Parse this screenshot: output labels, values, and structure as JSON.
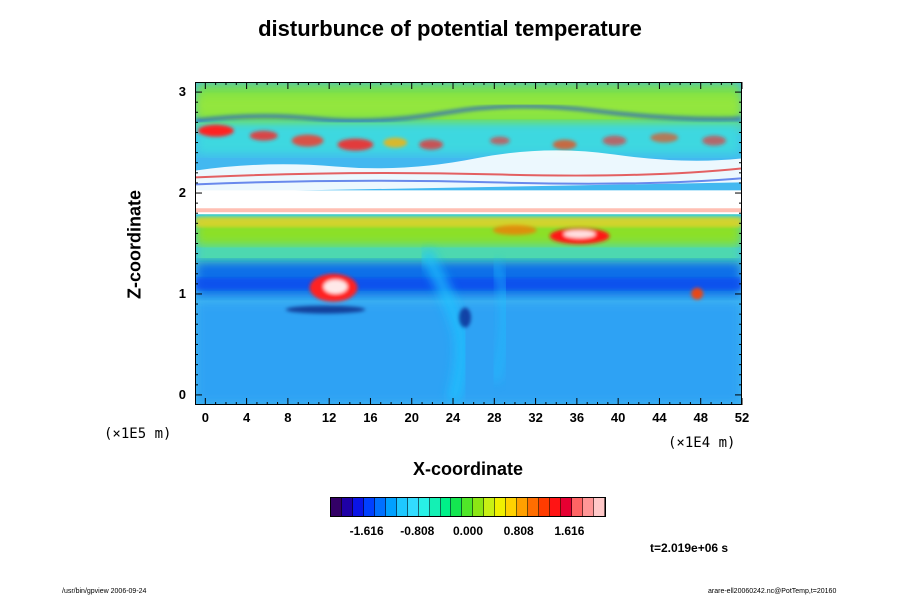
{
  "chart_data": {
    "type": "heatmap",
    "title": "disturbunce of potential temperature",
    "xlabel": "X-coordinate",
    "ylabel": "Z-coordinate",
    "x_unit": "(×1E4 m)",
    "z_unit": "(×1E5 m)",
    "xlim": [
      -1,
      52
    ],
    "ylim": [
      -0.1,
      3.1
    ],
    "x_ticks": [
      "0",
      "4",
      "8",
      "12",
      "16",
      "20",
      "24",
      "28",
      "32",
      "36",
      "40",
      "44",
      "48",
      "52"
    ],
    "y_ticks": [
      "0",
      "1",
      "2",
      "3"
    ],
    "colorbar": {
      "range": [
        -2.2,
        2.2
      ],
      "tick_labels": [
        "-1.616",
        "-0.808",
        "0.000",
        "0.808",
        "1.616"
      ],
      "colors": [
        "#330066",
        "#1f00a6",
        "#0a14e6",
        "#0040ff",
        "#0070ff",
        "#00a0ff",
        "#1ec8ff",
        "#32dcff",
        "#28f0e6",
        "#14f0b4",
        "#00f088",
        "#14e650",
        "#50e628",
        "#8ce614",
        "#c8f014",
        "#f0f000",
        "#ffd200",
        "#ffa000",
        "#ff6e00",
        "#ff3c00",
        "#ff1414",
        "#e60032",
        "#ff6464",
        "#ff9696",
        "#ffc8c8"
      ]
    },
    "time_label": "t=2.019e+06 s"
  },
  "footer": {
    "left": "/usr/bin/gpview 2006-09-24",
    "right": "arare-ell20060242.nc@PotTemp,t=20160"
  }
}
